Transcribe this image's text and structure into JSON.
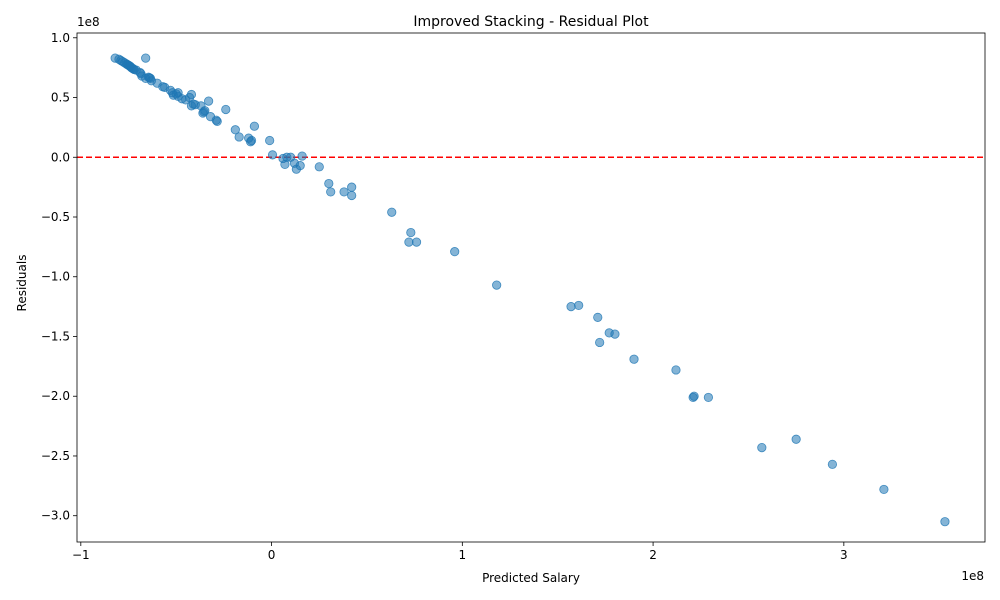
{
  "chart_data": {
    "type": "scatter",
    "title": "Improved Stacking - Residual Plot",
    "xlabel": "Predicted Salary",
    "ylabel": "Residuals",
    "x_offset_text": "1e8",
    "y_offset_text": "1e8",
    "xlim": [
      -1.02,
      3.74
    ],
    "ylim": [
      -3.22,
      1.04
    ],
    "x_ticks": [
      -1,
      0,
      1,
      2,
      3
    ],
    "x_tick_labels": [
      "−1",
      "0",
      "1",
      "2",
      "3"
    ],
    "y_ticks": [
      1.0,
      0.5,
      0.0,
      -0.5,
      -1.0,
      -1.5,
      -2.0,
      -2.5,
      -3.0
    ],
    "y_tick_labels": [
      "1.0",
      "0.5",
      "0.0",
      "−0.5",
      "−1.0",
      "−1.5",
      "−2.0",
      "−2.5",
      "−3.0"
    ],
    "grid": false,
    "reference_line": {
      "y": 0,
      "style": "dashed",
      "color": "#ff0000"
    },
    "point_color": "#1f77b4",
    "point_alpha": 0.55,
    "points": [
      [
        -0.82,
        0.83
      ],
      [
        -0.8,
        0.82
      ],
      [
        -0.79,
        0.81
      ],
      [
        -0.78,
        0.8
      ],
      [
        -0.77,
        0.79
      ],
      [
        -0.76,
        0.78
      ],
      [
        -0.755,
        0.775
      ],
      [
        -0.75,
        0.77
      ],
      [
        -0.745,
        0.765
      ],
      [
        -0.74,
        0.76
      ],
      [
        -0.735,
        0.75
      ],
      [
        -0.73,
        0.745
      ],
      [
        -0.725,
        0.74
      ],
      [
        -0.72,
        0.735
      ],
      [
        -0.71,
        0.73
      ],
      [
        -0.69,
        0.71
      ],
      [
        -0.685,
        0.7
      ],
      [
        -0.68,
        0.68
      ],
      [
        -0.66,
        0.83
      ],
      [
        -0.66,
        0.66
      ],
      [
        -0.645,
        0.67
      ],
      [
        -0.64,
        0.665
      ],
      [
        -0.635,
        0.66
      ],
      [
        -0.63,
        0.64
      ],
      [
        -0.6,
        0.62
      ],
      [
        -0.57,
        0.59
      ],
      [
        -0.56,
        0.585
      ],
      [
        -0.53,
        0.56
      ],
      [
        -0.52,
        0.54
      ],
      [
        -0.515,
        0.52
      ],
      [
        -0.5,
        0.53
      ],
      [
        -0.49,
        0.51
      ],
      [
        -0.49,
        0.54
      ],
      [
        -0.47,
        0.49
      ],
      [
        -0.45,
        0.48
      ],
      [
        -0.43,
        0.5
      ],
      [
        -0.42,
        0.525
      ],
      [
        -0.42,
        0.43
      ],
      [
        -0.41,
        0.445
      ],
      [
        -0.4,
        0.44
      ],
      [
        -0.37,
        0.43
      ],
      [
        -0.36,
        0.37
      ],
      [
        -0.355,
        0.38
      ],
      [
        -0.35,
        0.39
      ],
      [
        -0.33,
        0.47
      ],
      [
        -0.32,
        0.34
      ],
      [
        -0.29,
        0.31
      ],
      [
        -0.285,
        0.3
      ],
      [
        -0.24,
        0.4
      ],
      [
        -0.19,
        0.23
      ],
      [
        -0.17,
        0.17
      ],
      [
        -0.12,
        0.16
      ],
      [
        -0.11,
        0.13
      ],
      [
        -0.105,
        0.14
      ],
      [
        -0.09,
        0.26
      ],
      [
        -0.01,
        0.14
      ],
      [
        0.005,
        0.02
      ],
      [
        0.06,
        -0.01
      ],
      [
        0.07,
        -0.06
      ],
      [
        0.08,
        0.0
      ],
      [
        0.1,
        0.0
      ],
      [
        0.12,
        -0.05
      ],
      [
        0.13,
        -0.1
      ],
      [
        0.15,
        -0.07
      ],
      [
        0.16,
        0.01
      ],
      [
        0.25,
        -0.08
      ],
      [
        0.3,
        -0.22
      ],
      [
        0.31,
        -0.29
      ],
      [
        0.38,
        -0.29
      ],
      [
        0.42,
        -0.25
      ],
      [
        0.42,
        -0.32
      ],
      [
        0.63,
        -0.46
      ],
      [
        0.72,
        -0.71
      ],
      [
        0.73,
        -0.63
      ],
      [
        0.76,
        -0.71
      ],
      [
        0.96,
        -0.79
      ],
      [
        1.18,
        -1.07
      ],
      [
        1.57,
        -1.25
      ],
      [
        1.61,
        -1.24
      ],
      [
        1.71,
        -1.34
      ],
      [
        1.72,
        -1.55
      ],
      [
        1.77,
        -1.47
      ],
      [
        1.8,
        -1.48
      ],
      [
        1.9,
        -1.69
      ],
      [
        2.12,
        -1.78
      ],
      [
        2.21,
        -2.01
      ],
      [
        2.215,
        -2.0
      ],
      [
        2.29,
        -2.01
      ],
      [
        2.57,
        -2.43
      ],
      [
        2.75,
        -2.36
      ],
      [
        2.94,
        -2.57
      ],
      [
        3.21,
        -2.78
      ],
      [
        3.53,
        -3.05
      ]
    ]
  }
}
